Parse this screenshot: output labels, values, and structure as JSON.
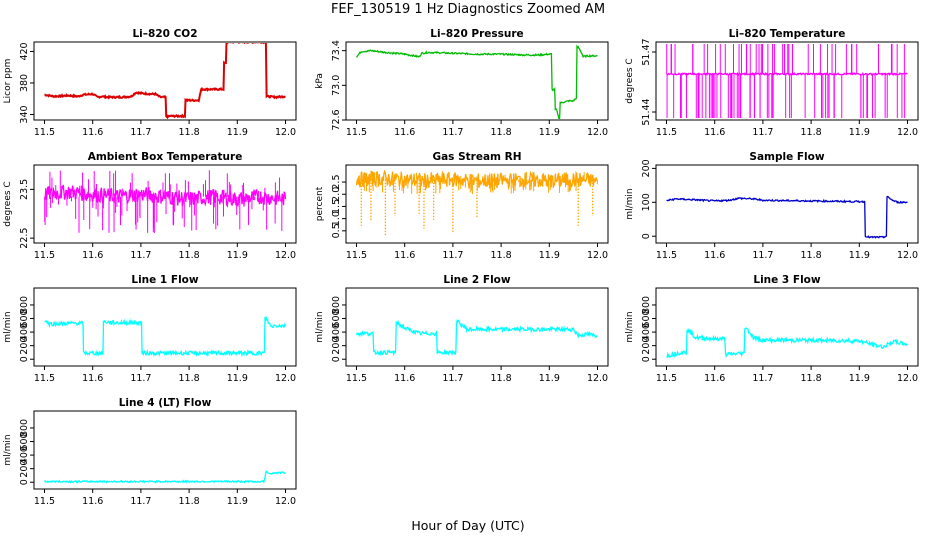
{
  "figure": {
    "title": "FEF_130519  1 Hz Diagnostics Zoomed AM",
    "x_title": "Hour of Day (UTC)"
  },
  "chart_data": [
    {
      "type": "line",
      "title": "Li–820 CO2",
      "ylabel": "Licor ppm",
      "xlim": [
        11.5,
        12.0
      ],
      "x_ticks": [
        11.5,
        11.6,
        11.7,
        11.8,
        11.9,
        12.0
      ],
      "ylim": [
        333,
        432
      ],
      "y_ticks": [
        340,
        380,
        420
      ],
      "color": "#dd0000",
      "series": [
        {
          "x": [
            11.5,
            11.52,
            11.55,
            11.57,
            11.58,
            11.6,
            11.61,
            11.62,
            11.63,
            11.66,
            11.68,
            11.69,
            11.7,
            11.72,
            11.73,
            11.74,
            11.75,
            11.755,
            11.76,
            11.79,
            11.795,
            11.8,
            11.82,
            11.825,
            11.83,
            11.87,
            11.875,
            11.88,
            11.9,
            11.93,
            11.95,
            11.958,
            11.962,
            11.98,
            12.0
          ],
          "y": [
            365,
            363,
            364,
            363,
            365,
            366,
            362,
            363,
            362,
            362,
            363,
            368,
            367,
            366,
            366,
            362,
            362,
            337,
            338,
            338,
            358,
            358,
            358,
            372,
            372,
            372,
            405,
            432,
            432,
            432,
            432,
            432,
            363,
            362,
            363
          ]
        }
      ]
    },
    {
      "type": "line",
      "title": "Li–820 Pressure",
      "ylabel": "kPa",
      "xlim": [
        11.5,
        12.0
      ],
      "x_ticks": [
        11.5,
        11.6,
        11.7,
        11.8,
        11.9,
        12.0
      ],
      "ylim": [
        72.6,
        73.5
      ],
      "y_ticks": [
        72.6,
        73.0,
        73.4
      ],
      "y_tick_labels": [
        "72.6",
        "73.0",
        "73.4"
      ],
      "color": "#00bb00",
      "series": [
        {
          "x": [
            11.5,
            11.51,
            11.53,
            11.56,
            11.6,
            11.63,
            11.635,
            11.65,
            11.7,
            11.75,
            11.8,
            11.85,
            11.88,
            11.9,
            11.91,
            11.915,
            11.92,
            11.925,
            11.94,
            11.95,
            11.955,
            11.96,
            11.965,
            11.97,
            11.98,
            12.0
          ],
          "y": [
            73.33,
            73.39,
            73.4,
            73.38,
            73.36,
            73.33,
            73.37,
            73.38,
            73.37,
            73.36,
            73.36,
            73.35,
            73.35,
            73.36,
            72.95,
            72.72,
            72.62,
            72.8,
            72.82,
            72.82,
            72.85,
            73.44,
            73.4,
            73.33,
            73.34,
            73.34
          ]
        }
      ]
    },
    {
      "type": "line",
      "title": "Li–820 Temperature",
      "ylabel": "degrees C",
      "xlim": [
        11.5,
        12.0
      ],
      "x_ticks": [
        11.5,
        11.6,
        11.7,
        11.8,
        11.9,
        12.0
      ],
      "ylim": [
        51.436,
        51.475
      ],
      "y_ticks": [
        51.44,
        51.47
      ],
      "y_tick_labels": [
        "51.44",
        "51.47"
      ],
      "color": "#ff00ff",
      "series": [
        {
          "x": [
            11.5,
            11.52,
            11.53,
            11.55,
            11.56,
            11.58,
            11.6,
            11.62,
            11.64,
            11.66,
            11.68,
            11.7,
            11.72,
            11.75,
            11.78,
            11.8,
            11.83,
            11.86,
            11.88,
            11.9,
            11.92,
            11.95,
            11.98,
            12.0
          ],
          "y": [
            51.459,
            51.459,
            51.459,
            51.459,
            51.459,
            51.459,
            51.459,
            51.459,
            51.459,
            51.459,
            51.459,
            51.459,
            51.459,
            51.459,
            51.459,
            51.459,
            51.459,
            51.459,
            51.459,
            51.459,
            51.459,
            51.459,
            51.459,
            51.459
          ]
        }
      ]
    },
    {
      "type": "line",
      "title": "Ambient Box Temperature",
      "ylabel": "degrees C",
      "xlim": [
        11.5,
        12.0
      ],
      "x_ticks": [
        11.5,
        11.6,
        11.7,
        11.8,
        11.9,
        12.0
      ],
      "ylim": [
        22.4,
        24.0
      ],
      "y_ticks": [
        22.5,
        23.5
      ],
      "y_tick_labels": [
        "22.5",
        "23.5"
      ],
      "color": "#ff00ff",
      "series": [
        {
          "x": [
            11.5,
            11.55,
            11.6,
            11.65,
            11.7,
            11.75,
            11.8,
            11.85,
            11.9,
            11.95,
            12.0
          ],
          "y": [
            23.4,
            23.45,
            23.4,
            23.35,
            23.4,
            23.35,
            23.3,
            23.35,
            23.3,
            23.35,
            23.3
          ]
        }
      ]
    },
    {
      "type": "line",
      "title": "Gas Stream RH",
      "ylabel": "percent",
      "xlim": [
        11.5,
        12.0
      ],
      "x_ticks": [
        11.5,
        11.6,
        11.7,
        11.8,
        11.9,
        12.0
      ],
      "ylim": [
        0.0,
        3.2
      ],
      "y_ticks": [
        0.5,
        1.0,
        1.5,
        2.0,
        2.5
      ],
      "y_tick_labels": [
        "0.5",
        "1.0",
        "1.5",
        "2.0",
        "2.5"
      ],
      "color": "#ffa500",
      "series": [
        {
          "x": [
            11.5,
            11.55,
            11.6,
            11.65,
            11.7,
            11.75,
            11.8,
            11.85,
            11.9,
            11.95,
            12.0
          ],
          "y": [
            2.6,
            2.65,
            2.6,
            2.55,
            2.6,
            2.55,
            2.55,
            2.6,
            2.55,
            2.6,
            2.55
          ]
        }
      ]
    },
    {
      "type": "line",
      "title": "Sample Flow",
      "ylabel": "ml/min",
      "xlim": [
        11.5,
        12.0
      ],
      "x_ticks": [
        11.5,
        11.6,
        11.7,
        11.8,
        11.9,
        12.0
      ],
      "ylim": [
        -20,
        210
      ],
      "y_ticks": [
        0,
        100,
        200
      ],
      "color": "#0000cc",
      "series": [
        {
          "x": [
            11.5,
            11.52,
            11.55,
            11.6,
            11.63,
            11.65,
            11.68,
            11.7,
            11.75,
            11.8,
            11.85,
            11.9,
            11.91,
            11.915,
            11.92,
            11.95,
            11.955,
            11.96,
            11.97,
            11.98,
            12.0
          ],
          "y": [
            105,
            110,
            108,
            104,
            106,
            112,
            110,
            106,
            105,
            104,
            103,
            102,
            102,
            0,
            -3,
            -3,
            0,
            115,
            105,
            100,
            100
          ]
        }
      ]
    },
    {
      "type": "line",
      "title": "Line 1 Flow",
      "ylabel": "ml/min",
      "xlim": [
        11.5,
        12.0
      ],
      "x_ticks": [
        11.5,
        11.6,
        11.7,
        11.8,
        11.9,
        12.0
      ],
      "ylim": [
        -100,
        1050
      ],
      "y_ticks": [
        0,
        200,
        400,
        600,
        800
      ],
      "color": "#00ffff",
      "series": [
        {
          "x": [
            11.5,
            11.51,
            11.55,
            11.58,
            11.582,
            11.62,
            11.625,
            11.64,
            11.7,
            11.705,
            11.8,
            11.9,
            11.955,
            11.96,
            11.97,
            11.98,
            12.0
          ],
          "y": [
            580,
            520,
            530,
            530,
            90,
            90,
            550,
            540,
            540,
            90,
            90,
            90,
            90,
            600,
            480,
            500,
            490
          ]
        }
      ]
    },
    {
      "type": "line",
      "title": "Line 2 Flow",
      "ylabel": "ml/min",
      "xlim": [
        11.5,
        12.0
      ],
      "x_ticks": [
        11.5,
        11.6,
        11.7,
        11.8,
        11.9,
        12.0
      ],
      "ylim": [
        -100,
        1050
      ],
      "y_ticks": [
        0,
        200,
        400,
        600,
        800
      ],
      "color": "#00ffff",
      "series": [
        {
          "x": [
            11.5,
            11.53,
            11.54,
            11.58,
            11.585,
            11.6,
            11.63,
            11.665,
            11.67,
            11.705,
            11.71,
            11.73,
            11.8,
            11.9,
            11.95,
            11.96,
            11.98,
            12.0
          ],
          "y": [
            380,
            380,
            100,
            100,
            530,
            460,
            380,
            380,
            100,
            100,
            550,
            440,
            440,
            440,
            440,
            350,
            370,
            340
          ]
        }
      ]
    },
    {
      "type": "line",
      "title": "Line 3 Flow",
      "ylabel": "ml/min",
      "xlim": [
        11.5,
        12.0
      ],
      "x_ticks": [
        11.5,
        11.6,
        11.7,
        11.8,
        11.9,
        12.0
      ],
      "ylim": [
        -100,
        1050
      ],
      "y_ticks": [
        0,
        200,
        400,
        600,
        800
      ],
      "color": "#00ffff",
      "series": [
        {
          "x": [
            11.5,
            11.53,
            11.54,
            11.545,
            11.56,
            11.6,
            11.62,
            11.625,
            11.66,
            11.665,
            11.68,
            11.7,
            11.8,
            11.9,
            11.92,
            11.95,
            11.97,
            12.0
          ],
          "y": [
            50,
            100,
            100,
            430,
            320,
            300,
            300,
            70,
            90,
            470,
            320,
            280,
            280,
            270,
            230,
            180,
            260,
            220
          ]
        }
      ]
    },
    {
      "type": "line",
      "title": "Line 4 (LT) Flow",
      "ylabel": "ml/min",
      "xlim": [
        11.5,
        12.0
      ],
      "x_ticks": [
        11.5,
        11.6,
        11.7,
        11.8,
        11.9,
        12.0
      ],
      "ylim": [
        -100,
        1050
      ],
      "y_ticks": [
        0,
        200,
        400,
        600,
        800
      ],
      "color": "#00ffff",
      "series": [
        {
          "x": [
            11.5,
            11.6,
            11.7,
            11.8,
            11.9,
            11.955,
            11.96,
            11.97,
            11.98,
            12.0
          ],
          "y": [
            10,
            10,
            10,
            10,
            10,
            10,
            150,
            130,
            140,
            140
          ]
        }
      ]
    }
  ]
}
